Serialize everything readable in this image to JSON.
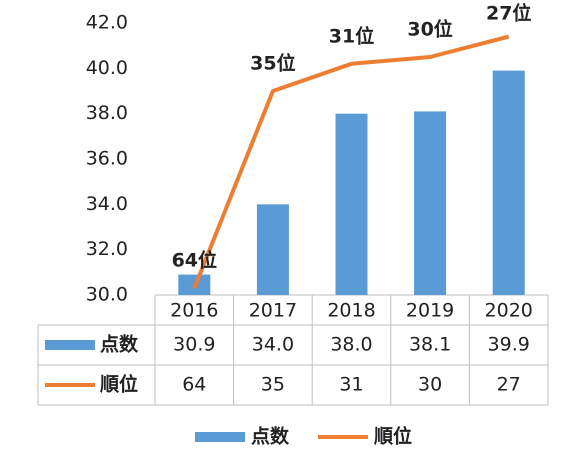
{
  "chart_data": {
    "type": "bar_line",
    "categories": [
      "2016",
      "2017",
      "2018",
      "2019",
      "2020"
    ],
    "series": [
      {
        "name": "点数",
        "type": "bar",
        "color": "#5b9bd5",
        "values": [
          30.9,
          34.0,
          38.0,
          38.1,
          39.9
        ],
        "value_labels": [
          "30.9",
          "34.0",
          "38.0",
          "38.1",
          "39.9"
        ]
      },
      {
        "name": "順位",
        "type": "line",
        "axis": "y2",
        "color": "#ed7d31",
        "values": [
          64,
          35,
          31,
          30,
          27
        ],
        "value_labels": [
          "64位",
          "35位",
          "31位",
          "30位",
          "27位"
        ]
      }
    ],
    "ylim": [
      30,
      42
    ],
    "yticks": [
      {
        "value": 30,
        "label": "30.0"
      },
      {
        "value": 32,
        "label": "32.0"
      },
      {
        "value": 34,
        "label": "34.0"
      },
      {
        "value": 36,
        "label": "36.0"
      },
      {
        "value": 38,
        "label": "38.0"
      },
      {
        "value": 40,
        "label": "40.0"
      },
      {
        "value": 42,
        "label": "42.0"
      }
    ],
    "y2lim": [
      65,
      25
    ],
    "data_table": true,
    "legend": "bottom"
  }
}
